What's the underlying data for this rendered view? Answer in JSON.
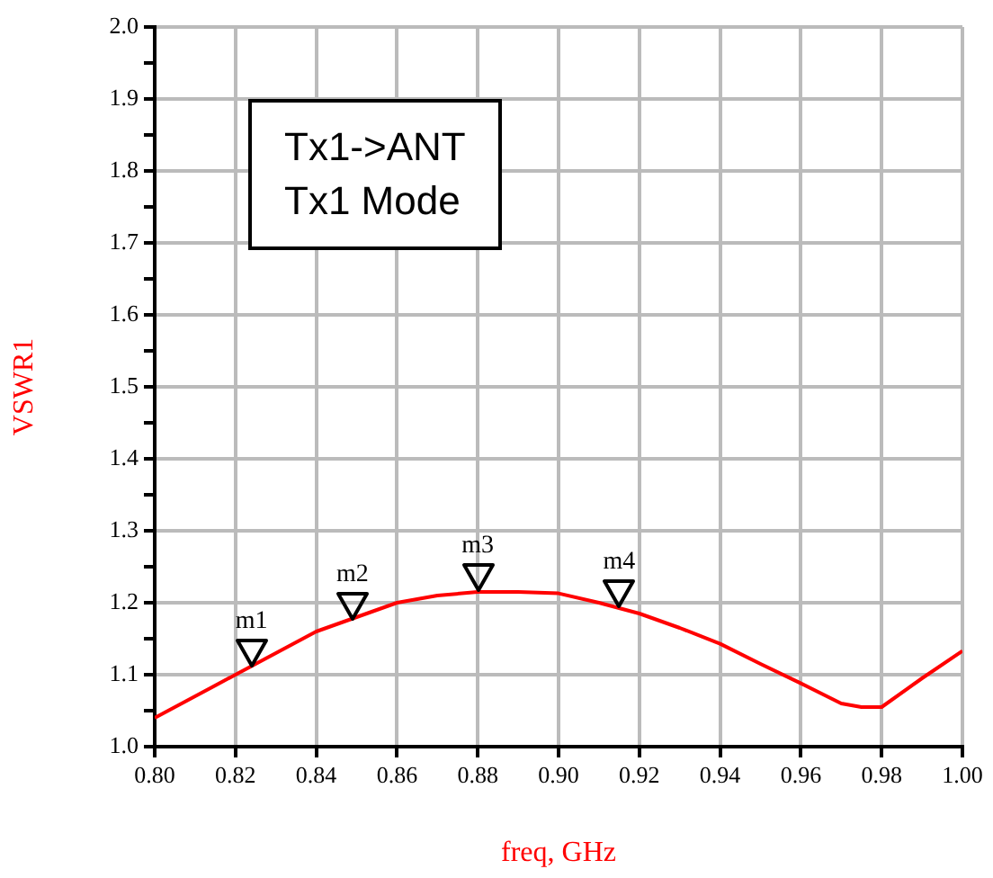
{
  "chart_data": {
    "type": "line",
    "xlabel": "freq, GHz",
    "ylabel": "VSWR1",
    "annotations": [
      "Tx1->ANT",
      "Tx1 Mode",
      {
        "text": "m1",
        "x": 0.824,
        "y": 1.11
      },
      {
        "text": "m2",
        "x": 0.849,
        "y": 1.175
      },
      {
        "text": "m3",
        "x": 0.88,
        "y": 1.215
      },
      {
        "text": "m4",
        "x": 0.915,
        "y": 1.193
      }
    ],
    "x": [
      0.8,
      0.81,
      0.82,
      0.83,
      0.84,
      0.85,
      0.86,
      0.87,
      0.88,
      0.89,
      0.9,
      0.91,
      0.92,
      0.93,
      0.94,
      0.95,
      0.96,
      0.97,
      0.975,
      0.98,
      0.99,
      1.0
    ],
    "series": [
      {
        "color": "#ff0000",
        "values": [
          1.04,
          1.07,
          1.1,
          1.13,
          1.16,
          1.18,
          1.2,
          1.21,
          1.215,
          1.215,
          1.213,
          1.2,
          1.185,
          1.165,
          1.143,
          1.115,
          1.088,
          1.06,
          1.055,
          1.055,
          1.095,
          1.133
        ]
      }
    ],
    "xlim": [
      0.8,
      1.0
    ],
    "xticks": [
      {
        "value": 0.8,
        "label": "0.80"
      },
      0.82,
      0.84,
      0.86,
      0.88,
      {
        "value": 0.9,
        "label": "0.90"
      },
      0.92,
      0.94,
      0.96,
      0.98,
      {
        "value": 1.0,
        "label": "1.00"
      }
    ],
    "ylim": [
      1.0,
      2.0
    ],
    "yticks": [
      {
        "value": 1.0,
        "label": "1.0"
      },
      {
        "value": 1.05,
        "label": null
      },
      1.1,
      {
        "value": 1.15,
        "label": null
      },
      1.2,
      {
        "value": 1.25,
        "label": null
      },
      1.3,
      {
        "value": 1.35,
        "label": null
      },
      1.4,
      {
        "value": 1.45,
        "label": null
      },
      1.5,
      {
        "value": 1.55,
        "label": null
      },
      1.6,
      {
        "value": 1.65,
        "label": null
      },
      1.7,
      {
        "value": 1.75,
        "label": null
      },
      1.8,
      {
        "value": 1.85,
        "label": null
      },
      1.9,
      {
        "value": 1.95,
        "label": null
      },
      {
        "value": 2.0,
        "label": "2.0"
      }
    ],
    "grid": true,
    "legend": false,
    "marker": "none",
    "line_style": "solid"
  }
}
